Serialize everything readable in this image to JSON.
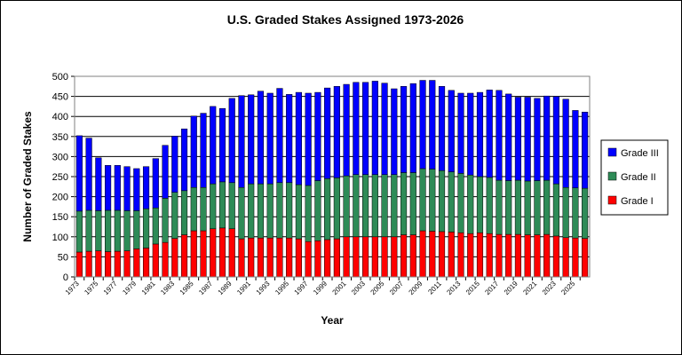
{
  "chart_data": {
    "type": "bar",
    "stacked": true,
    "title": "U.S. Graded Stakes Assigned  1973-2026",
    "xlabel": "Year",
    "ylabel": "Number of Graded Stakes",
    "ylim": [
      0,
      500
    ],
    "yticks": [
      0,
      50,
      100,
      150,
      200,
      250,
      300,
      350,
      400,
      450,
      500
    ],
    "grid": "horizontal",
    "legend_position": "right",
    "x_tick_labels": [
      "1973",
      "1975",
      "1977",
      "1979",
      "1981",
      "1983",
      "1985",
      "1987",
      "1989",
      "1991",
      "1993",
      "1995",
      "1997",
      "1999",
      "2001",
      "2003",
      "2005",
      "2007",
      "2009",
      "2011",
      "2013",
      "2015",
      "2017",
      "2019",
      "2021",
      "2023",
      "2025"
    ],
    "categories": [
      "1973",
      "1974",
      "1975",
      "1976",
      "1977",
      "1978",
      "1979",
      "1980",
      "1981",
      "1982",
      "1983",
      "1984",
      "1985",
      "1986",
      "1987",
      "1988",
      "1989",
      "1990",
      "1991",
      "1992",
      "1993",
      "1994",
      "1995",
      "1996",
      "1997",
      "1998",
      "1999",
      "2000",
      "2001",
      "2002",
      "2003",
      "2004",
      "2005",
      "2006",
      "2007",
      "2008",
      "2009",
      "2010",
      "2011",
      "2012",
      "2013",
      "2014",
      "2015",
      "2016",
      "2017",
      "2018",
      "2019",
      "2020",
      "2021",
      "2022",
      "2023",
      "2024",
      "2025",
      "2026"
    ],
    "series": [
      {
        "name": "Grade I",
        "color": "#ff0000",
        "values": [
          62,
          64,
          65,
          63,
          64,
          65,
          70,
          72,
          82,
          86,
          96,
          105,
          115,
          115,
          120,
          122,
          120,
          95,
          97,
          97,
          97,
          97,
          97,
          95,
          88,
          90,
          93,
          95,
          100,
          100,
          100,
          100,
          100,
          100,
          105,
          105,
          115,
          114,
          113,
          112,
          110,
          108,
          110,
          108,
          106,
          106,
          106,
          105,
          105,
          106,
          102,
          98,
          97,
          96
        ]
      },
      {
        "name": "Grade II",
        "color": "#2e8b57",
        "values": [
          102,
          102,
          100,
          103,
          102,
          100,
          95,
          98,
          90,
          110,
          115,
          110,
          108,
          108,
          112,
          115,
          115,
          128,
          135,
          135,
          135,
          138,
          138,
          135,
          140,
          150,
          152,
          152,
          152,
          155,
          155,
          155,
          155,
          155,
          155,
          155,
          155,
          155,
          152,
          150,
          148,
          146,
          140,
          140,
          135,
          134,
          135,
          134,
          135,
          135,
          130,
          125,
          125,
          125
        ]
      },
      {
        "name": "Grade III",
        "color": "#0000ff",
        "values": [
          188,
          180,
          132,
          112,
          112,
          110,
          105,
          105,
          123,
          132,
          140,
          154,
          178,
          185,
          193,
          183,
          210,
          229,
          222,
          231,
          226,
          235,
          220,
          230,
          230,
          220,
          226,
          228,
          228,
          230,
          230,
          233,
          228,
          214,
          215,
          222,
          220,
          221,
          210,
          203,
          200,
          204,
          210,
          218,
          224,
          216,
          207,
          209,
          205,
          210,
          218,
          220,
          193,
          190
        ]
      }
    ]
  }
}
